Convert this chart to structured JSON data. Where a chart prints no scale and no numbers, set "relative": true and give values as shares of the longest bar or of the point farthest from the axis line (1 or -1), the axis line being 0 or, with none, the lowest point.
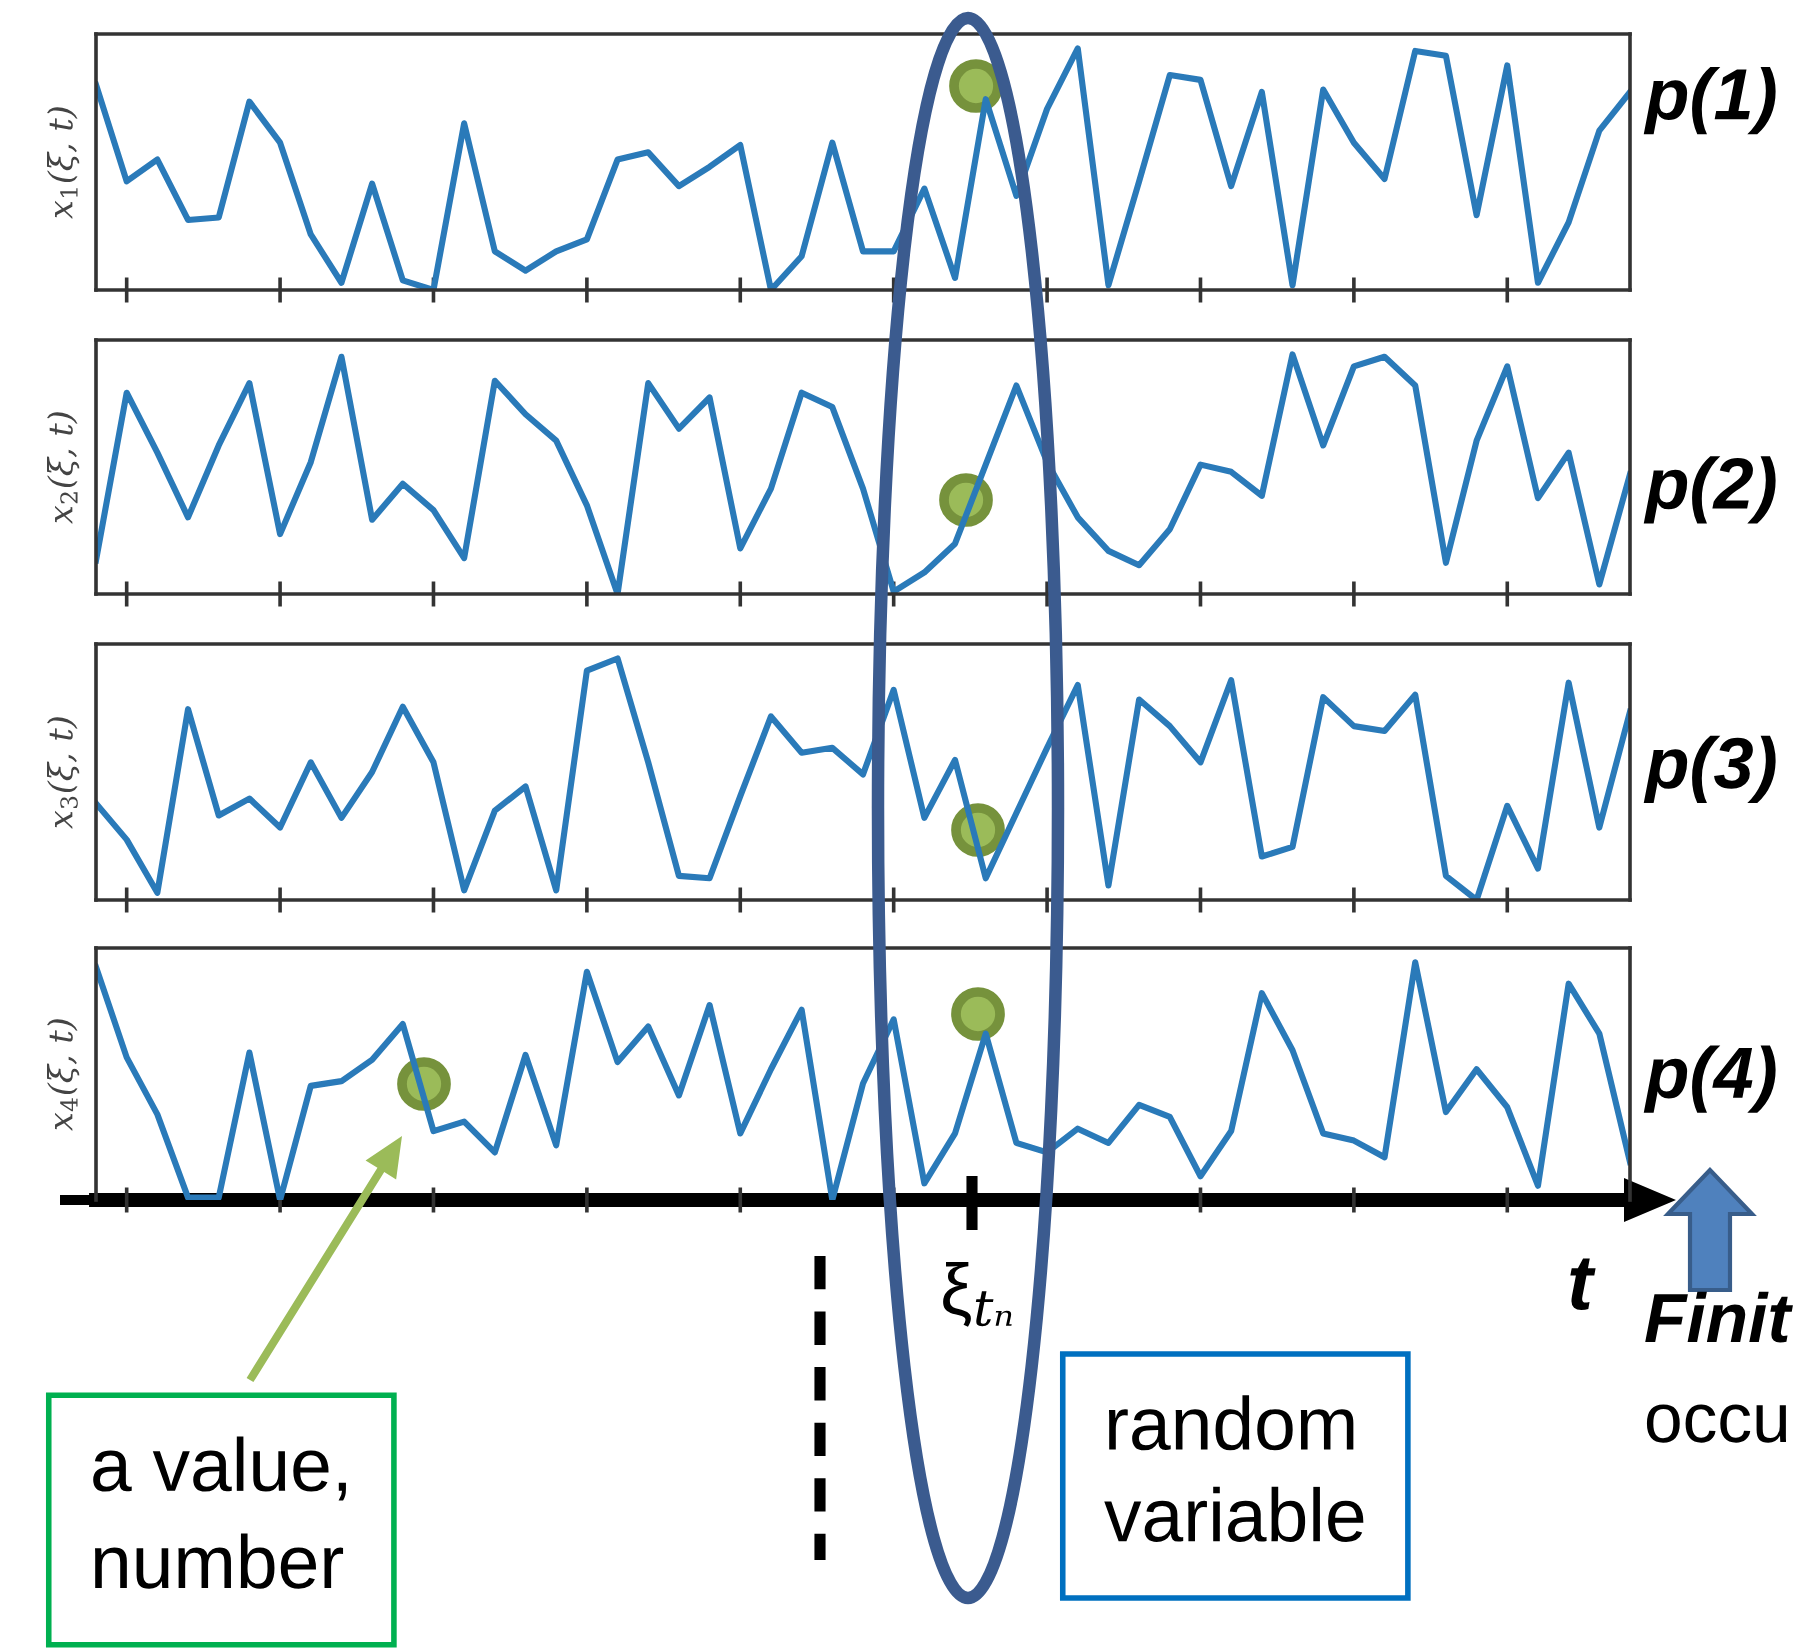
{
  "chart_data": [
    {
      "type": "line",
      "relative": true,
      "ylabel": "x$_{1}$(ξ, t)",
      "categories": [
        null,
        null,
        null,
        null,
        null,
        null,
        null,
        null,
        null,
        null,
        null,
        null,
        null,
        null,
        null,
        null,
        null,
        null,
        null,
        null,
        null,
        null,
        null,
        null,
        null,
        null,
        null,
        null,
        null,
        null,
        null,
        null,
        null,
        null,
        null,
        null,
        null,
        null,
        null,
        null,
        null,
        null,
        null,
        null,
        null,
        null,
        null,
        null,
        null,
        null,
        null
      ],
      "series": [
        {
          "color": "#2a7ab9",
          "values": [
            0.85,
            0.45,
            0.54,
            0.29,
            0.3,
            0.78,
            0.61,
            0.23,
            0.03,
            0.44,
            0.04,
            0.0,
            0.69,
            0.16,
            0.08,
            0.16,
            0.21,
            0.54,
            0.57,
            0.43,
            0.51,
            0.6,
            0.0,
            0.14,
            0.61,
            0.16,
            0.16,
            0.42,
            0.05,
            0.79,
            0.39,
            0.75,
            1.0,
            0.02,
            0.45,
            0.89,
            0.87,
            0.43,
            0.82,
            0.02,
            0.83,
            0.61,
            0.46,
            0.99,
            0.97,
            0.31,
            0.93,
            0.03,
            0.28,
            0.66,
            0.82
          ]
        }
      ],
      "annotations": [
        "p(1)"
      ]
    },
    {
      "type": "line",
      "relative": true,
      "ylabel": "x$_{2}$(ξ, t)",
      "categories": [
        null,
        null,
        null,
        null,
        null,
        null,
        null,
        null,
        null,
        null,
        null,
        null,
        null,
        null,
        null,
        null,
        null,
        null,
        null,
        null,
        null,
        null,
        null,
        null,
        null,
        null,
        null,
        null,
        null,
        null,
        null,
        null,
        null,
        null,
        null,
        null,
        null,
        null,
        null,
        null,
        null,
        null,
        null,
        null,
        null,
        null,
        null,
        null,
        null,
        null,
        null
      ],
      "series": [
        {
          "color": "#2a7ab9",
          "values": [
            0.14,
            0.84,
            0.59,
            0.32,
            0.62,
            0.88,
            0.25,
            0.55,
            0.99,
            0.31,
            0.46,
            0.35,
            0.15,
            0.89,
            0.75,
            0.64,
            0.37,
            0.0,
            0.88,
            0.69,
            0.82,
            0.19,
            0.44,
            0.84,
            0.78,
            0.44,
            0.01,
            0.09,
            0.21,
            0.54,
            0.87,
            0.55,
            0.32,
            0.18,
            0.12,
            0.27,
            0.54,
            0.51,
            0.41,
            1.0,
            0.62,
            0.95,
            0.99,
            0.87,
            0.13,
            0.64,
            0.95,
            0.4,
            0.59,
            0.04,
            0.5
          ]
        }
      ],
      "annotations": [
        "p(2)"
      ]
    },
    {
      "type": "line",
      "relative": true,
      "ylabel": "x$_{3}$(ξ, t)",
      "categories": [
        null,
        null,
        null,
        null,
        null,
        null,
        null,
        null,
        null,
        null,
        null,
        null,
        null,
        null,
        null,
        null,
        null,
        null,
        null,
        null,
        null,
        null,
        null,
        null,
        null,
        null,
        null,
        null,
        null,
        null,
        null,
        null,
        null,
        null,
        null,
        null,
        null,
        null,
        null,
        null,
        null,
        null,
        null,
        null,
        null,
        null,
        null,
        null,
        null,
        null,
        null
      ],
      "series": [
        {
          "color": "#2a7ab9",
          "values": [
            0.4,
            0.25,
            0.03,
            0.79,
            0.35,
            0.42,
            0.3,
            0.57,
            0.34,
            0.53,
            0.8,
            0.57,
            0.04,
            0.37,
            0.47,
            0.04,
            0.95,
            1.0,
            0.57,
            0.1,
            0.09,
            0.43,
            0.76,
            0.61,
            0.63,
            0.52,
            0.87,
            0.34,
            0.58,
            0.09,
            0.36,
            0.63,
            0.89,
            0.06,
            0.83,
            0.72,
            0.57,
            0.91,
            0.18,
            0.22,
            0.84,
            0.72,
            0.7,
            0.85,
            0.1,
            0.0,
            0.39,
            0.13,
            0.9,
            0.3,
            0.78
          ]
        }
      ],
      "annotations": [
        "p(3)"
      ]
    },
    {
      "type": "line",
      "relative": true,
      "ylabel": "x$_{4}$(ξ, t)",
      "xlabel": "t",
      "categories": [
        null,
        null,
        null,
        null,
        null,
        null,
        null,
        null,
        null,
        null,
        null,
        null,
        null,
        null,
        null,
        null,
        null,
        null,
        null,
        null,
        null,
        null,
        null,
        null,
        null,
        null,
        null,
        null,
        null,
        null,
        null,
        null,
        null,
        null,
        null,
        null,
        null,
        null,
        null,
        null,
        null,
        null,
        null,
        null,
        null,
        null,
        null,
        null,
        null,
        null,
        null
      ],
      "series": [
        {
          "color": "#2a7ab9",
          "values": [
            0.98,
            0.6,
            0.36,
            0.01,
            0.01,
            0.62,
            0.0,
            0.48,
            0.5,
            0.59,
            0.74,
            0.29,
            0.33,
            0.2,
            0.61,
            0.23,
            0.96,
            0.58,
            0.73,
            0.44,
            0.82,
            0.28,
            0.55,
            0.8,
            0.0,
            0.49,
            0.76,
            0.07,
            0.28,
            0.7,
            0.24,
            0.2,
            0.3,
            0.24,
            0.4,
            0.35,
            0.1,
            0.29,
            0.87,
            0.63,
            0.28,
            0.25,
            0.18,
            1.0,
            0.37,
            0.55,
            0.39,
            0.06,
            0.91,
            0.7,
            0.16
          ]
        }
      ],
      "annotations": [
        "p(4)",
        "ξ$_{tₙ}$",
        "a value,\nnumber",
        "random\nvariable",
        "Finit",
        "occu"
      ]
    }
  ]
}
